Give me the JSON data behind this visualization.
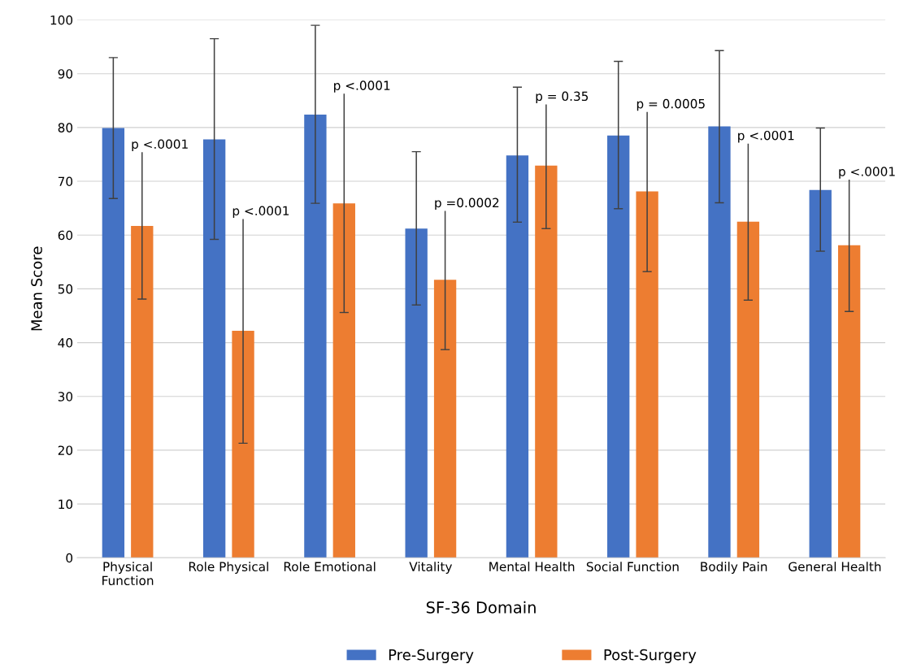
{
  "chart_data": {
    "type": "bar",
    "xlabel": "SF-36 Domain",
    "ylabel": "Mean Score",
    "categories": [
      "Physical\nFunction",
      "Role Physical",
      "Role Emotional",
      "Vitality",
      "Mental Health",
      "Social Function",
      "Bodily Pain",
      "General Health"
    ],
    "series": [
      {
        "name": "Pre-Surgery",
        "color": "#4472c4",
        "values": [
          79.9,
          77.8,
          82.4,
          61.2,
          74.8,
          78.5,
          80.2,
          68.4
        ],
        "errors": [
          [
            66.8,
            93.0
          ],
          [
            59.2,
            96.5
          ],
          [
            65.9,
            99.0
          ],
          [
            47.0,
            75.5
          ],
          [
            62.4,
            87.5
          ],
          [
            64.9,
            92.3
          ],
          [
            66.0,
            94.3
          ],
          [
            57.0,
            79.9
          ]
        ]
      },
      {
        "name": "Post-Surgery",
        "color": "#ed7d31",
        "values": [
          61.7,
          42.2,
          65.9,
          51.7,
          72.9,
          68.1,
          62.5,
          58.1
        ],
        "errors": [
          [
            48.1,
            75.6
          ],
          [
            21.3,
            63.2
          ],
          [
            45.6,
            86.5
          ],
          [
            38.7,
            64.7
          ],
          [
            61.2,
            84.5
          ],
          [
            53.2,
            83.1
          ],
          [
            47.9,
            77.2
          ],
          [
            45.8,
            70.5
          ]
        ]
      }
    ],
    "annotations": [
      "p <.0001",
      "p <.0001",
      "p <.0001",
      "p =0.0002",
      "p = 0.35",
      "p = 0.0005",
      "p <.0001",
      "p <.0001"
    ],
    "ylim": [
      0,
      100
    ],
    "yticks": [
      0,
      10,
      20,
      30,
      40,
      50,
      60,
      70,
      80,
      90,
      100
    ],
    "grid": "y",
    "legend": "bottom"
  }
}
